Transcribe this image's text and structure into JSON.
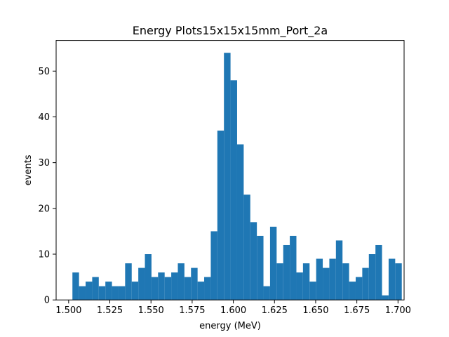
{
  "chart_data": {
    "type": "bar",
    "subtype": "histogram",
    "title": "Energy Plots15x15x15mm_Port_2a",
    "xlabel": "energy (MeV)",
    "ylabel": "events",
    "bin_start": 1.5023,
    "bin_width": 0.004,
    "values": [
      6,
      3,
      4,
      5,
      3,
      4,
      3,
      3,
      8,
      4,
      7,
      10,
      5,
      6,
      5,
      6,
      8,
      5,
      7,
      4,
      5,
      15,
      37,
      54,
      48,
      34,
      23,
      17,
      14,
      3,
      16,
      8,
      12,
      14,
      6,
      8,
      4,
      9,
      7,
      9,
      13,
      8,
      4,
      5,
      7,
      10,
      12,
      1,
      9,
      8
    ],
    "xlim": [
      1.4924,
      1.7037
    ],
    "ylim": [
      0,
      56.7
    ],
    "xticks": [
      1.5,
      1.525,
      1.55,
      1.575,
      1.6,
      1.625,
      1.65,
      1.675,
      1.7
    ],
    "xtick_labels": [
      "1.500",
      "1.525",
      "1.550",
      "1.575",
      "1.600",
      "1.625",
      "1.650",
      "1.675",
      "1.700"
    ],
    "yticks": [
      0,
      10,
      20,
      30,
      40,
      50
    ],
    "ytick_labels": [
      "0",
      "10",
      "20",
      "30",
      "40",
      "50"
    ],
    "bar_color": "#1f77b4",
    "grid": false,
    "legend": "none"
  }
}
